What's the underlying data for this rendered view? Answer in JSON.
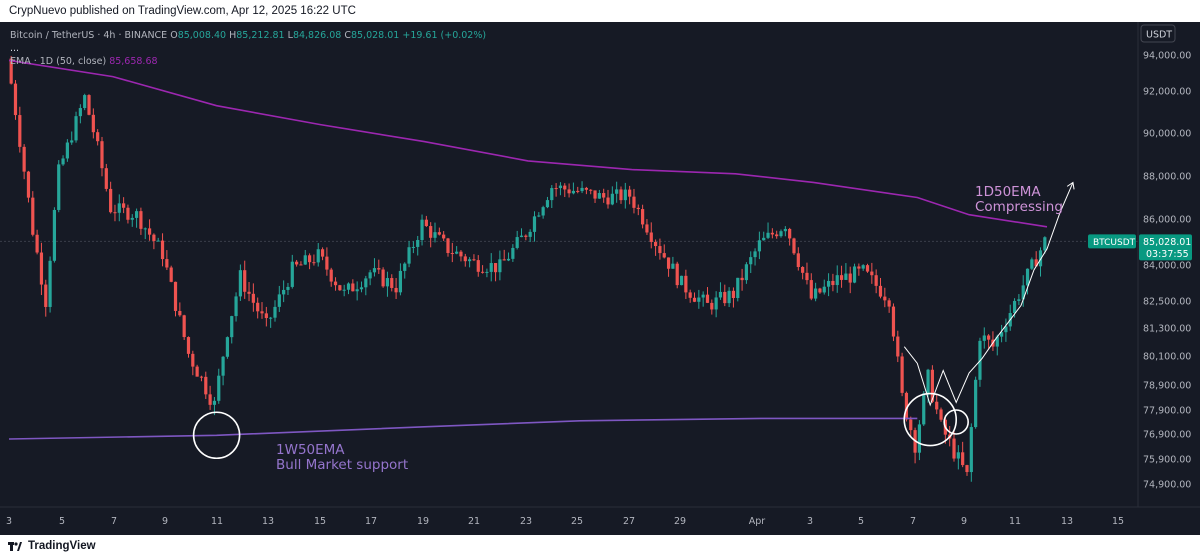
{
  "header": {
    "publisher_line": "CrypNuevo published on TradingView.com, Apr 12, 2025 16:22 UTC"
  },
  "legend": {
    "symbol": "Bitcoin / TetherUS · 4h · BINANCE",
    "o_label": "O",
    "o_value": "85,008.40",
    "h_label": "H",
    "h_value": "85,212.81",
    "l_label": "L",
    "l_value": "84,826.08",
    "c_label": "C",
    "c_value": "85,028.01",
    "change": "+19.61 (+0.02%)",
    "dots": "...",
    "ema_label": "EMA · 1D (50, close)",
    "ema_value": "85,658.68"
  },
  "footer": {
    "brand": "TradingView"
  },
  "chart_data": {
    "type": "line",
    "title": "",
    "currency": "USDT",
    "y_ticks": [
      "94,000.00",
      "92,000.00",
      "90,000.00",
      "88,000.00",
      "86,000.00",
      "84,000.00",
      "82,500.00",
      "81,300.00",
      "80,100.00",
      "78,900.00",
      "77,900.00",
      "76,900.00",
      "75,900.00",
      "74,900.00"
    ],
    "x_ticks": [
      "3",
      "5",
      "7",
      "9",
      "11",
      "13",
      "15",
      "17",
      "19",
      "21",
      "23",
      "25",
      "27",
      "29",
      "Apr",
      "3",
      "5",
      "7",
      "9",
      "11",
      "13",
      "15"
    ],
    "price_tag": {
      "symbol": "BTCUSDT",
      "price": "85,028.01",
      "countdown": "03:37:55"
    },
    "last_price": 85028.01,
    "price_series": {
      "name": "BTCUSDT 4h (approx. closes)",
      "points": [
        [
          "Mar 3",
          93800
        ],
        [
          "Mar 4",
          85500
        ],
        [
          "Mar 4.5",
          82500
        ],
        [
          "Mar 5",
          88200
        ],
        [
          "Mar 6",
          91700
        ],
        [
          "Mar 6.5",
          89300
        ],
        [
          "Mar 7",
          86500
        ],
        [
          "Mar 8",
          86200
        ],
        [
          "Mar 9",
          84500
        ],
        [
          "Mar 10",
          80200
        ],
        [
          "Mar 11",
          78100
        ],
        [
          "Mar 11.5",
          81200
        ],
        [
          "Mar 12",
          83500
        ],
        [
          "Mar 13",
          81400
        ],
        [
          "Mar 14",
          83800
        ],
        [
          "Mar 15",
          84400
        ],
        [
          "Mar 16",
          82800
        ],
        [
          "Mar 17",
          83700
        ],
        [
          "Mar 18",
          83100
        ],
        [
          "Mar 19",
          85800
        ],
        [
          "Mar 20",
          84700
        ],
        [
          "Mar 21",
          84100
        ],
        [
          "Mar 22",
          83900
        ],
        [
          "Mar 23",
          85400
        ],
        [
          "Mar 24",
          87500
        ],
        [
          "Mar 25",
          87300
        ],
        [
          "Mar 26",
          87000
        ],
        [
          "Mar 27",
          87100
        ],
        [
          "Mar 28",
          85000
        ],
        [
          "Mar 29",
          83200
        ],
        [
          "Mar 30",
          82300
        ],
        [
          "Mar 31",
          82800
        ],
        [
          "Apr 1",
          84900
        ],
        [
          "Apr 2",
          85800
        ],
        [
          "Apr 3",
          82600
        ],
        [
          "Apr 4",
          83400
        ],
        [
          "Apr 5",
          83700
        ],
        [
          "Apr 6",
          82600
        ],
        [
          "Apr 6.5",
          78400
        ],
        [
          "Apr 7",
          76500
        ],
        [
          "Apr 7.5",
          79200
        ],
        [
          "Apr 8",
          77200
        ],
        [
          "Apr 9",
          75200
        ],
        [
          "Apr 9.5",
          81000
        ],
        [
          "Apr 10",
          80500
        ],
        [
          "Apr 11",
          82800
        ],
        [
          "Apr 12",
          85028
        ]
      ]
    },
    "ema_1d_50": {
      "name": "EMA 1D (50)",
      "points": [
        [
          "Mar 3",
          94300
        ],
        [
          "Mar 7",
          92800
        ],
        [
          "Mar 11",
          91300
        ],
        [
          "Mar 15",
          90400
        ],
        [
          "Mar 19",
          89600
        ],
        [
          "Mar 23",
          88700
        ],
        [
          "Mar 27",
          88300
        ],
        [
          "Mar 31",
          88100
        ],
        [
          "Apr 3",
          87700
        ],
        [
          "Apr 7",
          87000
        ],
        [
          "Apr 9",
          86200
        ],
        [
          "Apr 12",
          85659
        ]
      ],
      "last_value": 85658.68
    },
    "ema_1w_50": {
      "name": "1W50EMA",
      "points": [
        [
          "Mar 3",
          76700
        ],
        [
          "Mar 11",
          76850
        ],
        [
          "Mar 19",
          77200
        ],
        [
          "Mar 25",
          77450
        ],
        [
          "Apr 1",
          77550
        ],
        [
          "Apr 7",
          77550
        ]
      ]
    },
    "projection_path": {
      "points": [
        [
          "Apr 6.5",
          80500
        ],
        [
          "Apr 7",
          79800
        ],
        [
          "Apr 7.5",
          78100
        ],
        [
          "Apr 8",
          79500
        ],
        [
          "Apr 8.5",
          78200
        ],
        [
          "Apr 9",
          79400
        ],
        [
          "Apr 9.5",
          80000
        ],
        [
          "Apr 10",
          80800
        ],
        [
          "Apr 11",
          82300
        ],
        [
          "Apr 11.5",
          83800
        ],
        [
          "Apr 12",
          84700
        ],
        [
          "Apr 12.5",
          86300
        ],
        [
          "Apr 13",
          87700
        ]
      ]
    },
    "circles": [
      {
        "name": "circle-1w50ema-touch",
        "x": "Mar 11",
        "y": 76850
      },
      {
        "name": "circle-apr7-low",
        "x": "Apr 7.5",
        "y": 77500
      },
      {
        "name": "circle-apr9-low",
        "x": "Apr 8.5",
        "y": 77400
      }
    ],
    "annotations": [
      {
        "name": "annotation-1d50ema",
        "lines": [
          "1D50EMA",
          "Compressing"
        ],
        "color": "#ce93d8"
      },
      {
        "name": "annotation-1w50ema",
        "lines": [
          "1W50EMA",
          "Bull Market support"
        ],
        "color": "#9575cd"
      }
    ],
    "colors": {
      "background": "#161a25",
      "up": "#26a69a",
      "down": "#ef5350",
      "ema_1d": "#9c27b0",
      "ema_1w": "#7e57c2",
      "price_tag": "#089981",
      "text": "#b2b5be"
    }
  }
}
